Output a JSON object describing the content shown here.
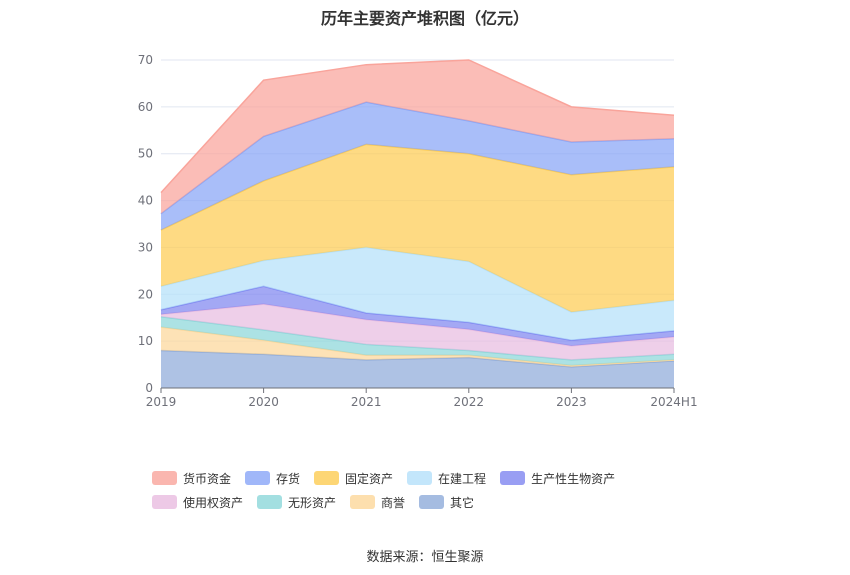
{
  "chart_data": {
    "type": "area",
    "stacked": true,
    "title": "历年主要资产堆积图（亿元）",
    "categories": [
      "2019",
      "2020",
      "2021",
      "2022",
      "2023",
      "2024H1"
    ],
    "ylim": [
      0,
      70
    ],
    "yticks": [
      0,
      10,
      20,
      30,
      40,
      50,
      60,
      70
    ],
    "grid": true,
    "legend_position": "bottom",
    "series": [
      {
        "name": "其它",
        "color": "#8fabd9",
        "values": [
          8.0,
          7.2,
          6.0,
          6.5,
          4.5,
          5.8
        ]
      },
      {
        "name": "商誉",
        "color": "#fcd79a",
        "values": [
          5.0,
          3.0,
          1.0,
          0.5,
          0.3,
          0.2
        ]
      },
      {
        "name": "无形资产",
        "color": "#8cd7d9",
        "values": [
          2.2,
          2.2,
          2.3,
          1.0,
          1.2,
          1.2
        ]
      },
      {
        "name": "使用权资产",
        "color": "#e8bce0",
        "values": [
          0.5,
          5.5,
          5.3,
          4.5,
          3.0,
          3.7
        ]
      },
      {
        "name": "生产性生物资产",
        "color": "#7f86f0",
        "values": [
          1.0,
          3.8,
          1.4,
          1.5,
          1.2,
          1.3
        ]
      },
      {
        "name": "在建工程",
        "color": "#b4e0fa",
        "values": [
          5.0,
          5.5,
          14.0,
          13.0,
          6.0,
          6.5
        ]
      },
      {
        "name": "固定资产",
        "color": "#fdcc53",
        "values": [
          12.0,
          17.0,
          22.0,
          23.0,
          29.3,
          28.5
        ]
      },
      {
        "name": "存货",
        "color": "#88a5f7",
        "values": [
          3.5,
          9.5,
          9.0,
          7.0,
          7.0,
          6.0
        ]
      },
      {
        "name": "货币资金",
        "color": "#f9a49b",
        "values": [
          4.5,
          12.0,
          8.0,
          13.0,
          7.5,
          5.0
        ]
      }
    ]
  },
  "legend": [
    {
      "name": "货币资金",
      "color": "#f9a49b"
    },
    {
      "name": "存货",
      "color": "#88a5f7"
    },
    {
      "name": "固定资产",
      "color": "#fdcc53"
    },
    {
      "name": "在建工程",
      "color": "#b4e0fa"
    },
    {
      "name": "生产性生物资产",
      "color": "#7f86f0"
    },
    {
      "name": "使用权资产",
      "color": "#e8bce0"
    },
    {
      "name": "无形资产",
      "color": "#8cd7d9"
    },
    {
      "name": "商誉",
      "color": "#fcd79a"
    },
    {
      "name": "其它",
      "color": "#8fabd9"
    }
  ],
  "source": "数据来源：恒生聚源"
}
